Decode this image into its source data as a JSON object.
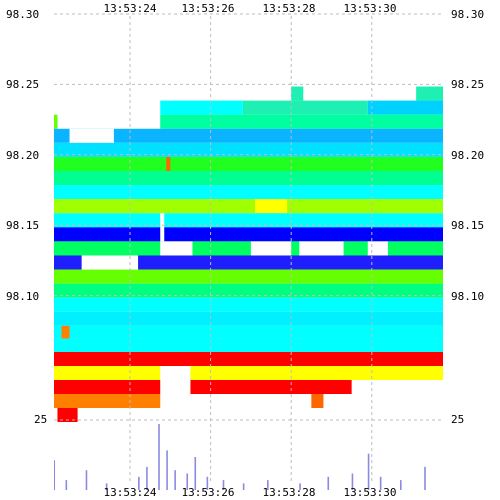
{
  "chart_data": {
    "type": "heatmap",
    "title": "",
    "time_ticks": [
      "13:53:24",
      "13:53:26",
      "13:53:28",
      "13:53:30"
    ],
    "time_tick_positions_sec": [
      24,
      26,
      28,
      30
    ],
    "x_range_sec": [
      22.5,
      32.3
    ],
    "price_ticks": [
      "98.30",
      "98.25",
      "98.20",
      "98.15",
      "98.10"
    ],
    "price_tick_values": [
      98.3,
      98.25,
      98.2,
      98.15,
      98.1
    ],
    "y_range": [
      98.0595,
      98.3
    ],
    "lower_axis_label": "25",
    "grid": true,
    "bands": [
      {
        "p0": 98.2485,
        "p1": 98.2385,
        "t0": 28.0,
        "t1": 28.3,
        "color": "#1ef0b4"
      },
      {
        "p0": 98.2485,
        "p1": 98.2385,
        "t0": 31.1,
        "t1": 32.0,
        "color": "#1ef0b4"
      },
      {
        "p0": 98.2385,
        "p1": 98.2285,
        "t0": 24.75,
        "t1": 26.8,
        "color": "#00ffff"
      },
      {
        "p0": 98.2385,
        "p1": 98.2285,
        "t0": 26.8,
        "t1": 29.9,
        "color": "#1ef0b4"
      },
      {
        "p0": 98.2385,
        "p1": 98.2285,
        "t0": 29.9,
        "t1": 32.0,
        "color": "#00d2ff"
      },
      {
        "p0": 98.2285,
        "p1": 98.2185,
        "t0": 21.7,
        "t1": 22.2,
        "color": "#66ff00"
      },
      {
        "p0": 98.2285,
        "p1": 98.2185,
        "t0": 24.75,
        "t1": 32.0,
        "color": "#00ffa0"
      },
      {
        "p0": 98.2185,
        "p1": 98.2085,
        "t0": 21.7,
        "t1": 32.0,
        "color": "#0ab4ff"
      },
      {
        "p0": 98.2085,
        "p1": 98.1985,
        "t0": 21.7,
        "t1": 32.0,
        "color": "#00e0ff"
      },
      {
        "p0": 98.1985,
        "p1": 98.1885,
        "t0": 21.7,
        "t1": 32.0,
        "color": "#20ff20"
      },
      {
        "p0": 98.1985,
        "p1": 98.1885,
        "t0": 24.9,
        "t1": 25.0,
        "color": "#ff6600"
      },
      {
        "p0": 98.1885,
        "p1": 98.1785,
        "t0": 21.7,
        "t1": 32.0,
        "color": "#00ff90"
      },
      {
        "p0": 98.1785,
        "p1": 98.1685,
        "t0": 21.7,
        "t1": 32.0,
        "color": "#00ffff"
      },
      {
        "p0": 98.1685,
        "p1": 98.1585,
        "t0": 21.7,
        "t1": 32.0,
        "color": "#a0ff00"
      },
      {
        "p0": 98.1685,
        "p1": 98.1585,
        "t0": 27.1,
        "t1": 27.9,
        "color": "#ffff00"
      },
      {
        "p0": 98.1585,
        "p1": 98.1485,
        "t0": 21.7,
        "t1": 32.0,
        "color": "#00ffff"
      },
      {
        "p0": 98.1485,
        "p1": 98.1385,
        "t0": 21.7,
        "t1": 32.0,
        "color": "#0000ff"
      },
      {
        "p0": 98.1385,
        "p1": 98.1285,
        "t0": 21.7,
        "t1": 32.0,
        "color": "#00ff60"
      },
      {
        "p0": 98.1285,
        "p1": 98.1185,
        "t0": 21.7,
        "t1": 32.0,
        "color": "#1e1eff"
      },
      {
        "p0": 98.1185,
        "p1": 98.1085,
        "t0": 21.7,
        "t1": 32.0,
        "color": "#66ff00"
      },
      {
        "p0": 98.1085,
        "p1": 98.0985,
        "t0": 21.7,
        "t1": 32.0,
        "color": "#00ff80"
      },
      {
        "p0": 98.0985,
        "p1": 98.0885,
        "t0": 21.7,
        "t1": 32.0,
        "color": "#00ffff"
      },
      {
        "p0": 98.0885,
        "p1": 98.0785,
        "t0": 21.7,
        "t1": 32.0,
        "color": "#00f0ff"
      },
      {
        "p0": 98.0785,
        "p1": 98.0695,
        "t0": 21.7,
        "t1": 32.0,
        "color": "#00ffff"
      },
      {
        "p0": 98.0785,
        "p1": 98.0695,
        "t0": 22.3,
        "t1": 22.5,
        "color": "#ff8000"
      },
      {
        "p0": 98.0695,
        "p1": 98.0595,
        "t0": 21.7,
        "t1": 32.0,
        "color": "#00ffff"
      }
    ],
    "lower_bands": [
      {
        "row": 0,
        "t0": 21.7,
        "t1": 31.95,
        "color": "#ff0000"
      },
      {
        "row": 0,
        "t0": 32.05,
        "t1": 32.3,
        "color": "#ff0000"
      },
      {
        "row": 1,
        "t0": 21.7,
        "t1": 24.75,
        "color": "#ffff00"
      },
      {
        "row": 1,
        "t0": 25.5,
        "t1": 32.0,
        "color": "#ffff00"
      },
      {
        "row": 2,
        "t0": 21.7,
        "t1": 24.75,
        "color": "#ff0000"
      },
      {
        "row": 2,
        "t0": 25.5,
        "t1": 29.5,
        "color": "#ff0000"
      },
      {
        "row": 3,
        "t0": 21.7,
        "t1": 24.75,
        "color": "#ff8000"
      },
      {
        "row": 3,
        "t0": 28.5,
        "t1": 28.8,
        "color": "#ff6600"
      },
      {
        "row": 4,
        "t0": 22.2,
        "t1": 22.7,
        "color": "#ff0000"
      }
    ],
    "volume_spikes": [
      {
        "t": 22.1,
        "v": 0.45
      },
      {
        "t": 22.4,
        "v": 0.15
      },
      {
        "t": 22.9,
        "v": 0.3
      },
      {
        "t": 23.4,
        "v": 0.1
      },
      {
        "t": 24.2,
        "v": 0.2
      },
      {
        "t": 24.4,
        "v": 0.35
      },
      {
        "t": 24.7,
        "v": 1.0
      },
      {
        "t": 24.9,
        "v": 0.6
      },
      {
        "t": 25.1,
        "v": 0.3
      },
      {
        "t": 25.4,
        "v": 0.25
      },
      {
        "t": 25.6,
        "v": 0.5
      },
      {
        "t": 25.9,
        "v": 0.2
      },
      {
        "t": 26.3,
        "v": 0.15
      },
      {
        "t": 26.8,
        "v": 0.1
      },
      {
        "t": 27.4,
        "v": 0.15
      },
      {
        "t": 28.2,
        "v": 0.1
      },
      {
        "t": 28.9,
        "v": 0.2
      },
      {
        "t": 29.5,
        "v": 0.25
      },
      {
        "t": 29.9,
        "v": 0.55
      },
      {
        "t": 30.2,
        "v": 0.2
      },
      {
        "t": 30.7,
        "v": 0.15
      },
      {
        "t": 31.3,
        "v": 0.35
      },
      {
        "t": 31.8,
        "v": 0.6
      },
      {
        "t": 32.0,
        "v": 0.3
      }
    ]
  }
}
